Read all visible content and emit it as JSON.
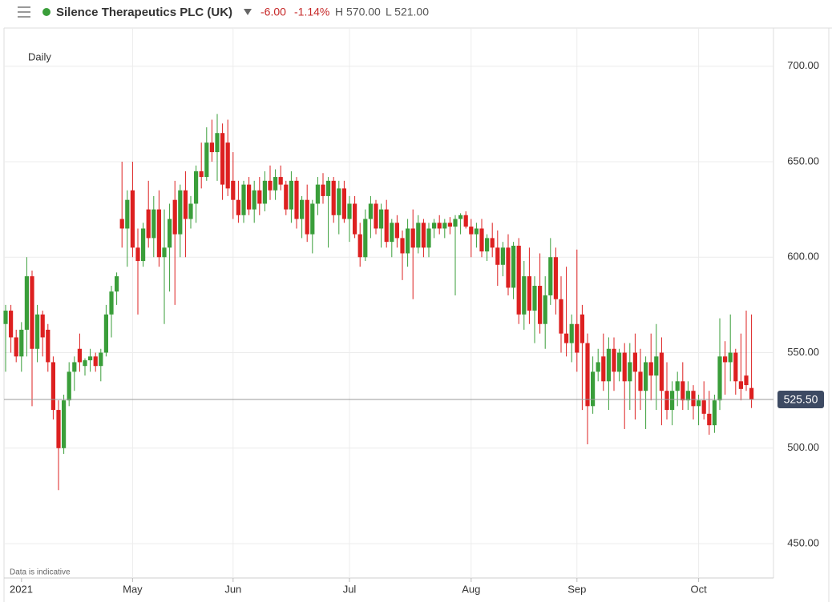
{
  "chart_data": {
    "type": "candlestick",
    "title": "Silence Therapeutics PLC (UK)",
    "change": "-6.00",
    "change_pct": "-1.14%",
    "high_label": "H 570.00",
    "low_label": "L 521.00",
    "interval": "Daily",
    "note": "Data is indicative",
    "last_price": {
      "value": 525.5,
      "label": "525.50"
    },
    "up_color": "#3a9e3a",
    "down_color": "#dd2020",
    "ylim": [
      432,
      720
    ],
    "yticks": [
      {
        "value": 450,
        "label": "450.00"
      },
      {
        "value": 500,
        "label": "500.00"
      },
      {
        "value": 550,
        "label": "550.00"
      },
      {
        "value": 600,
        "label": "600.00"
      },
      {
        "value": 650,
        "label": "650.00"
      },
      {
        "value": 700,
        "label": "700.00"
      }
    ],
    "grid": true,
    "categories": [
      null,
      null,
      null,
      "2021",
      null,
      null,
      null,
      null,
      null,
      null,
      null,
      null,
      null,
      null,
      null,
      null,
      null,
      null,
      null,
      null,
      null,
      null,
      null,
      null,
      "May",
      null,
      null,
      null,
      null,
      null,
      null,
      null,
      null,
      null,
      null,
      null,
      null,
      null,
      null,
      null,
      null,
      null,
      null,
      "Jun",
      null,
      null,
      null,
      null,
      null,
      null,
      null,
      null,
      null,
      null,
      null,
      null,
      null,
      null,
      null,
      null,
      null,
      null,
      null,
      null,
      null,
      "Jul",
      null,
      null,
      null,
      null,
      null,
      null,
      null,
      null,
      null,
      null,
      null,
      null,
      null,
      null,
      null,
      null,
      null,
      null,
      null,
      null,
      null,
      null,
      "Aug",
      null,
      null,
      null,
      null,
      null,
      null,
      null,
      null,
      null,
      null,
      null,
      null,
      null,
      null,
      null,
      null,
      null,
      null,
      null,
      "Sep",
      null,
      null,
      null,
      null,
      null,
      null,
      null,
      null,
      null,
      null,
      null,
      null,
      null,
      null,
      null,
      null,
      null,
      null,
      null,
      null,
      null,
      null,
      "Oct",
      null,
      null,
      null,
      null,
      null,
      null,
      null,
      null,
      null,
      null
    ],
    "open": [
      565,
      572,
      558,
      548,
      562,
      590,
      552,
      570,
      562,
      545,
      520,
      500,
      525,
      540,
      552,
      543,
      546,
      548,
      543,
      550,
      570,
      582,
      620,
      615,
      635,
      605,
      598,
      625,
      610,
      625,
      600,
      605,
      630,
      612,
      635,
      620,
      628,
      645,
      642,
      660,
      655,
      665,
      660,
      640,
      630,
      622,
      638,
      625,
      635,
      628,
      640,
      635,
      642,
      638,
      625,
      640,
      620,
      630,
      612,
      628,
      638,
      632,
      640,
      622,
      636,
      620,
      628,
      612,
      600,
      620,
      628,
      615,
      625,
      608,
      618,
      610,
      602,
      615,
      605,
      618,
      605,
      615,
      618,
      615,
      618,
      616,
      620,
      622,
      616,
      612,
      615,
      603,
      610,
      605,
      596,
      605,
      584,
      606,
      570,
      590,
      572,
      585,
      565,
      580,
      600,
      578,
      560,
      555,
      565,
      570,
      555,
      522,
      540,
      548,
      535,
      552,
      540,
      550,
      535,
      550,
      540,
      530,
      545,
      538,
      550,
      530,
      520,
      530,
      535,
      525,
      530,
      522,
      525,
      518,
      512,
      525,
      548,
      545,
      550,
      535,
      538,
      531.5
    ],
    "high": [
      575,
      575,
      562,
      566,
      600,
      593,
      575,
      572,
      565,
      548,
      525,
      528,
      545,
      548,
      560,
      547,
      552,
      550,
      552,
      575,
      585,
      592,
      650,
      635,
      650,
      615,
      618,
      640,
      632,
      635,
      625,
      628,
      640,
      638,
      645,
      632,
      648,
      660,
      668,
      672,
      675,
      670,
      672,
      655,
      640,
      640,
      642,
      640,
      642,
      645,
      648,
      646,
      648,
      640,
      645,
      642,
      632,
      638,
      630,
      642,
      644,
      642,
      642,
      640,
      640,
      632,
      632,
      618,
      625,
      632,
      630,
      628,
      630,
      620,
      622,
      614,
      620,
      625,
      622,
      620,
      618,
      620,
      622,
      620,
      621,
      622,
      623,
      624,
      620,
      618,
      620,
      612,
      618,
      614,
      608,
      612,
      608,
      610,
      598,
      605,
      590,
      602,
      590,
      610,
      605,
      590,
      595,
      570,
      604,
      575,
      560,
      548,
      552,
      560,
      558,
      558,
      552,
      555,
      555,
      560,
      552,
      548,
      560,
      565,
      558,
      545,
      535,
      540,
      545,
      535,
      533,
      528,
      535,
      530,
      528,
      568,
      556,
      570,
      552,
      560,
      572,
      570
    ],
    "low": [
      540,
      550,
      545,
      540,
      548,
      522,
      545,
      548,
      540,
      515,
      478,
      497,
      522,
      530,
      540,
      538,
      540,
      540,
      535,
      548,
      558,
      575,
      605,
      595,
      600,
      570,
      595,
      605,
      600,
      595,
      565,
      582,
      575,
      600,
      600,
      615,
      618,
      636,
      640,
      650,
      640,
      630,
      632,
      620,
      618,
      618,
      622,
      618,
      622,
      624,
      630,
      630,
      635,
      622,
      618,
      615,
      610,
      608,
      602,
      622,
      628,
      605,
      618,
      612,
      618,
      608,
      610,
      595,
      598,
      610,
      612,
      605,
      605,
      600,
      605,
      588,
      595,
      578,
      602,
      600,
      600,
      610,
      612,
      610,
      612,
      580,
      612,
      615,
      600,
      605,
      600,
      598,
      600,
      585,
      590,
      580,
      578,
      565,
      562,
      565,
      555,
      560,
      552,
      575,
      570,
      550,
      548,
      545,
      540,
      520,
      502,
      518,
      535,
      530,
      520,
      530,
      535,
      510,
      520,
      515,
      520,
      510,
      525,
      520,
      512,
      515,
      512,
      522,
      520,
      520,
      515,
      512,
      515,
      507,
      508,
      520,
      528,
      535,
      528,
      525,
      530,
      521
    ],
    "close": [
      572,
      558,
      548,
      562,
      590,
      552,
      570,
      558,
      545,
      520,
      500,
      525,
      540,
      545,
      545,
      546,
      548,
      543,
      550,
      570,
      582,
      590,
      615,
      630,
      605,
      598,
      615,
      610,
      625,
      600,
      605,
      620,
      612,
      635,
      620,
      628,
      645,
      642,
      660,
      655,
      665,
      638,
      636,
      630,
      622,
      638,
      625,
      635,
      628,
      640,
      635,
      642,
      638,
      625,
      640,
      620,
      630,
      612,
      628,
      638,
      632,
      640,
      622,
      636,
      620,
      628,
      612,
      600,
      620,
      628,
      615,
      625,
      608,
      618,
      610,
      602,
      615,
      605,
      618,
      605,
      615,
      618,
      615,
      618,
      616,
      620,
      622,
      616,
      612,
      615,
      603,
      610,
      605,
      596,
      605,
      584,
      606,
      570,
      590,
      572,
      585,
      565,
      580,
      600,
      578,
      560,
      555,
      565,
      550,
      555,
      522,
      540,
      545,
      535,
      552,
      540,
      550,
      535,
      545,
      540,
      530,
      545,
      538,
      548,
      530,
      520,
      530,
      535,
      525,
      530,
      522,
      525,
      518,
      512,
      525,
      548,
      545,
      550,
      535,
      531,
      533,
      525.5
    ]
  }
}
